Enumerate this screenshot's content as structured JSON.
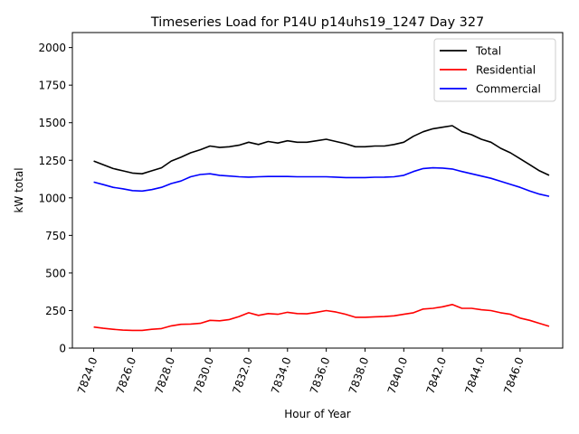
{
  "chart_data": {
    "type": "line",
    "title": "Timeseries Load for P14U p14uhs19_1247  Day 327",
    "xlabel": "Hour of Year",
    "ylabel": "kW total",
    "xlim": [
      7822.9,
      7848.2
    ],
    "ylim": [
      0,
      2100
    ],
    "xticks": [
      7824,
      7826,
      7828,
      7830,
      7832,
      7834,
      7836,
      7838,
      7840,
      7842,
      7844,
      7846
    ],
    "xtick_labels": [
      "7824.0",
      "7826.0",
      "7828.0",
      "7830.0",
      "7832.0",
      "7834.0",
      "7836.0",
      "7838.0",
      "7840.0",
      "7842.0",
      "7844.0",
      "7846.0"
    ],
    "yticks": [
      0,
      250,
      500,
      750,
      1000,
      1250,
      1500,
      1750,
      2000
    ],
    "ytick_labels": [
      "0",
      "250",
      "500",
      "750",
      "1000",
      "1250",
      "1500",
      "1750",
      "2000"
    ],
    "grid": false,
    "legend_position": "top-right",
    "x": [
      7824.0,
      7824.5,
      7825.0,
      7825.5,
      7826.0,
      7826.5,
      7827.0,
      7827.5,
      7828.0,
      7828.5,
      7829.0,
      7829.5,
      7830.0,
      7830.5,
      7831.0,
      7831.5,
      7832.0,
      7832.5,
      7833.0,
      7833.5,
      7834.0,
      7834.5,
      7835.0,
      7835.5,
      7836.0,
      7836.5,
      7837.0,
      7837.5,
      7838.0,
      7838.5,
      7839.0,
      7839.5,
      7840.0,
      7840.5,
      7841.0,
      7841.5,
      7842.0,
      7842.5,
      7843.0,
      7843.5,
      7844.0,
      7844.5,
      7845.0,
      7845.5,
      7846.0,
      7846.5,
      7847.0,
      7847.5
    ],
    "series": [
      {
        "name": "Total",
        "color": "#000000",
        "values": [
          1245,
          1220,
          1195,
          1180,
          1165,
          1160,
          1180,
          1200,
          1245,
          1270,
          1300,
          1320,
          1345,
          1335,
          1340,
          1350,
          1370,
          1355,
          1375,
          1365,
          1380,
          1370,
          1370,
          1380,
          1390,
          1375,
          1360,
          1340,
          1340,
          1345,
          1345,
          1355,
          1370,
          1410,
          1440,
          1460,
          1470,
          1480,
          1440,
          1420,
          1390,
          1370,
          1330,
          1300,
          1260,
          1220,
          1180,
          1150
        ]
      },
      {
        "name": "Residential",
        "color": "#ff0000",
        "values": [
          140,
          132,
          125,
          120,
          118,
          118,
          125,
          130,
          148,
          158,
          160,
          165,
          185,
          182,
          190,
          210,
          235,
          218,
          230,
          225,
          238,
          230,
          228,
          238,
          250,
          240,
          225,
          205,
          205,
          208,
          210,
          215,
          225,
          235,
          260,
          265,
          275,
          290,
          265,
          265,
          255,
          250,
          235,
          225,
          200,
          185,
          165,
          145
        ]
      },
      {
        "name": "Commercial",
        "color": "#0000ff",
        "values": [
          1105,
          1088,
          1070,
          1060,
          1048,
          1045,
          1055,
          1070,
          1095,
          1112,
          1140,
          1155,
          1160,
          1150,
          1145,
          1140,
          1138,
          1140,
          1142,
          1142,
          1142,
          1140,
          1140,
          1140,
          1140,
          1138,
          1135,
          1135,
          1135,
          1137,
          1138,
          1140,
          1150,
          1175,
          1195,
          1200,
          1198,
          1192,
          1175,
          1160,
          1145,
          1130,
          1110,
          1090,
          1070,
          1045,
          1025,
          1010
        ]
      }
    ]
  }
}
